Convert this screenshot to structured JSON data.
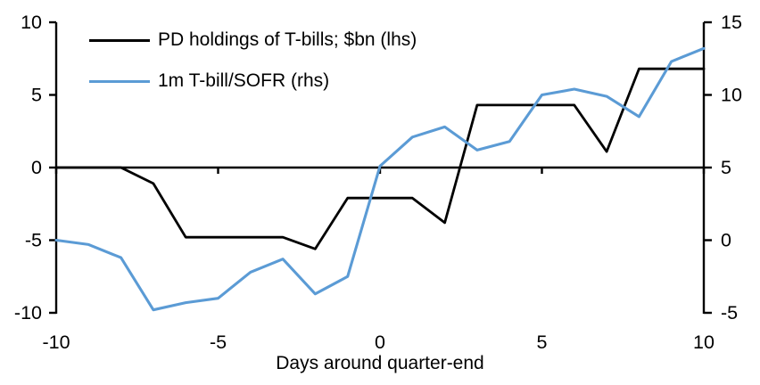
{
  "chart_data": {
    "type": "line",
    "title": "",
    "xlabel": "Days around quarter-end",
    "x": [
      -10,
      -9,
      -8,
      -7,
      -6,
      -5,
      -4,
      -3,
      -2,
      -1,
      0,
      1,
      2,
      3,
      4,
      5,
      6,
      7,
      8,
      9,
      10
    ],
    "series": [
      {
        "name": "PD holdings of T-bills; $bn (lhs)",
        "axis": "left",
        "color": "#000000",
        "values": [
          0,
          0,
          0,
          -1.1,
          -4.8,
          -4.8,
          -4.8,
          -4.8,
          -5.6,
          -2.1,
          -2.1,
          -2.1,
          -3.8,
          4.3,
          4.3,
          4.3,
          4.3,
          1.1,
          6.8,
          6.8,
          6.8
        ]
      },
      {
        "name": "1m T-bill/SOFR (rhs)",
        "axis": "right",
        "color": "#5B9BD5",
        "values": [
          0.0,
          -0.3,
          -1.2,
          -4.8,
          -4.3,
          -4.0,
          -2.2,
          -1.3,
          -3.7,
          -2.5,
          5.1,
          7.1,
          7.8,
          6.2,
          6.8,
          10.0,
          10.4,
          9.9,
          8.5,
          12.3,
          13.2
        ]
      }
    ],
    "left_axis": {
      "min": -10,
      "max": 10,
      "ticks": [
        10,
        5,
        0,
        -5,
        -10
      ]
    },
    "right_axis": {
      "min": -5,
      "max": 15,
      "ticks": [
        15,
        10,
        5,
        0,
        -5
      ]
    },
    "x_axis": {
      "min": -10,
      "max": 10,
      "ticks": [
        -10,
        -5,
        0,
        5,
        10
      ]
    },
    "grid": "off",
    "legend_position": "top-left"
  },
  "colors": {
    "background": "#FFFFFF",
    "axis": "#000000",
    "series_black": "#000000",
    "series_blue": "#5B9BD5"
  }
}
